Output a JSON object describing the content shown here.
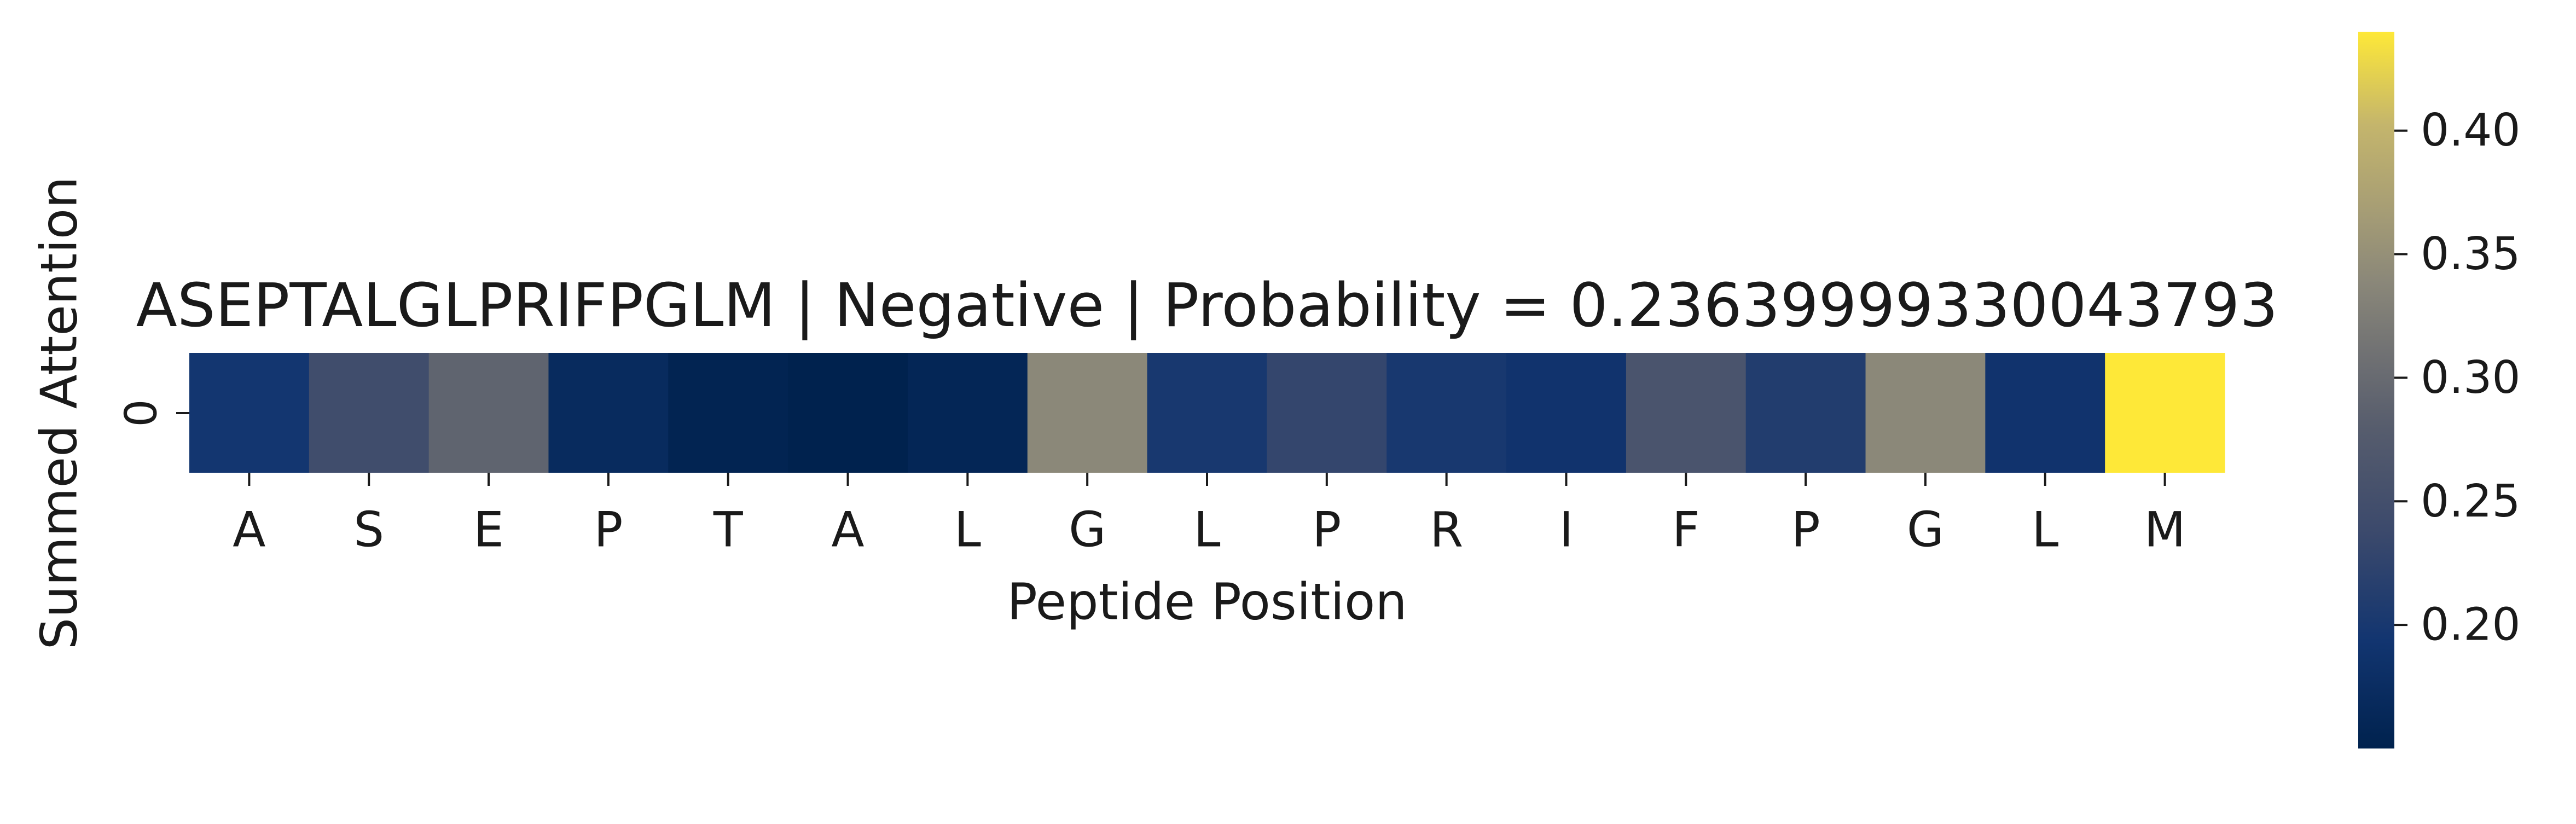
{
  "chart_data": {
    "type": "heatmap",
    "title": "ASEPTALGLPRIFPGLM | Negative | Probability = 0.23639999330043793",
    "xlabel": "Peptide Position",
    "ylabel": "Summed Attention",
    "row_labels": [
      "0"
    ],
    "categories": [
      "A",
      "S",
      "E",
      "P",
      "T",
      "A",
      "L",
      "G",
      "L",
      "P",
      "R",
      "I",
      "F",
      "P",
      "G",
      "L",
      "M"
    ],
    "values": [
      [
        0.195,
        0.245,
        0.29,
        0.17,
        0.155,
        0.15,
        0.16,
        0.34,
        0.2,
        0.23,
        0.2,
        0.19,
        0.26,
        0.21,
        0.34,
        0.19,
        0.44
      ]
    ],
    "colormap": "cividis",
    "colorbar": {
      "vmin": 0.15,
      "vmax": 0.44,
      "ticks": [
        0.2,
        0.25,
        0.3,
        0.35,
        0.4
      ],
      "tick_labels": [
        "0.20",
        "0.25",
        "0.30",
        "0.35",
        "0.40"
      ]
    }
  }
}
